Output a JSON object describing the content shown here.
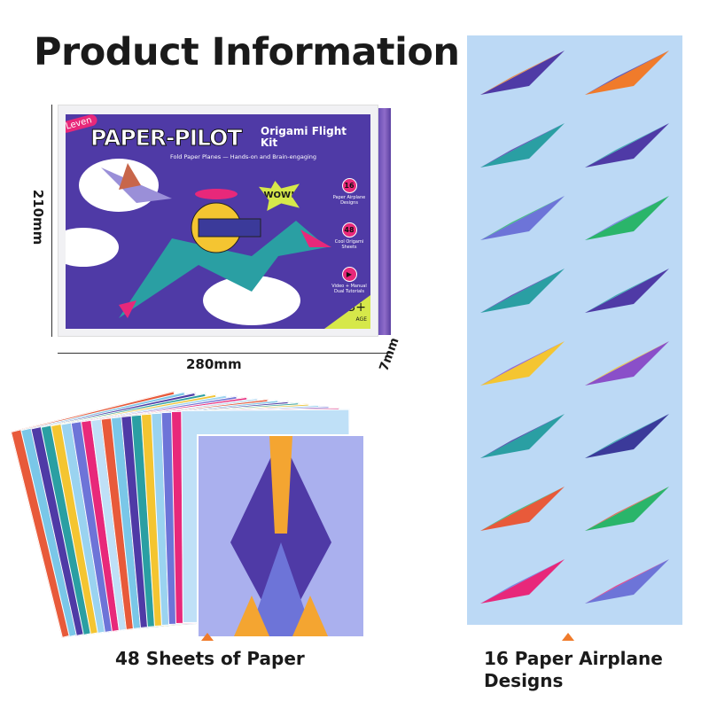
{
  "title": "Product Information",
  "box": {
    "brand": "Leven",
    "name": "PAPER-PILOT",
    "subtitle": "Origami Flight Kit",
    "tagline": "Fold Paper Planes — Hands-on and Brain-engaging",
    "exclaim": "WOW!",
    "badges": [
      {
        "value": "16",
        "label": "Paper Airplane Designs"
      },
      {
        "value": "48",
        "label": "Cool Origami Sheets"
      },
      {
        "value": "▶",
        "label": "Video + Manual Dual Tutorials"
      }
    ],
    "age": "3+",
    "age_label": "AGE"
  },
  "dimensions": {
    "height": "210mm",
    "width": "280mm",
    "depth": "7mm"
  },
  "captions": {
    "sheets": "48 Sheets of Paper",
    "designs_line1": "16 Paper Airplane",
    "designs_line2": "Designs"
  },
  "colors": {
    "accent": "#f07b2b",
    "panel": "#bcd9f5",
    "cover": "#4f3aa6",
    "pink": "#e8287a"
  }
}
